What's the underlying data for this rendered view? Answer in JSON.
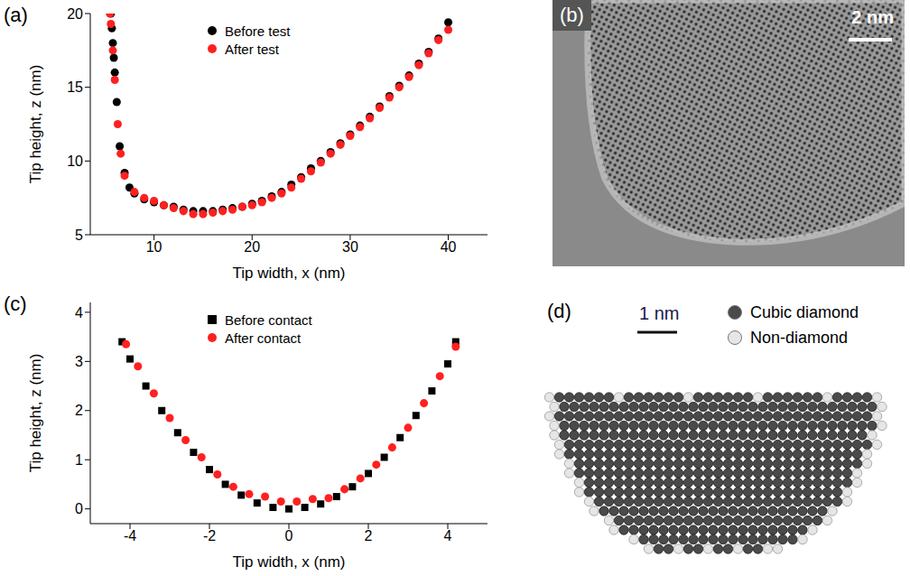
{
  "chart_data": [
    {
      "panel": "(a)",
      "type": "scatter",
      "x_label": "Tip width, x (nm)",
      "y_label": "Tip height, z (nm)",
      "xlim": [
        3.5,
        44
      ],
      "xticks": [
        10,
        20,
        30,
        40
      ],
      "ylim": [
        5,
        20
      ],
      "yticks": [
        5,
        10,
        15,
        20
      ],
      "legend": "top",
      "series": [
        {
          "name": "Before test",
          "color": "#000000",
          "marker": "circle",
          "x": [
            5.6,
            5.7,
            5.8,
            5.9,
            6.0,
            6.2,
            6.5,
            7,
            7.5,
            8,
            9,
            10,
            11,
            12,
            13,
            14,
            15,
            16,
            17,
            18,
            19,
            20,
            21,
            22,
            23,
            24,
            25,
            26,
            27,
            28,
            29,
            30,
            31,
            32,
            33,
            34,
            35,
            36,
            37,
            38,
            39,
            40
          ],
          "values": [
            20,
            19,
            18,
            17,
            16,
            14,
            11,
            9.2,
            8.2,
            7.8,
            7.4,
            7.2,
            7.0,
            6.9,
            6.7,
            6.6,
            6.6,
            6.6,
            6.7,
            6.8,
            6.9,
            7.1,
            7.3,
            7.6,
            7.9,
            8.4,
            8.9,
            9.5,
            10,
            10.6,
            11.2,
            11.8,
            12.4,
            13,
            13.7,
            14.4,
            15.1,
            15.8,
            16.6,
            17.4,
            18.3,
            19.4
          ]
        },
        {
          "name": "After test",
          "color": "#ff2020",
          "marker": "circle",
          "x": [
            5.5,
            5.6,
            5.8,
            6.0,
            6.3,
            6.6,
            7,
            8,
            9,
            10,
            11,
            12,
            13,
            14,
            15,
            16,
            17,
            18,
            19,
            20,
            21,
            22,
            23,
            24,
            25,
            26,
            27,
            28,
            29,
            30,
            31,
            32,
            33,
            34,
            35,
            36,
            37,
            38,
            39,
            40
          ],
          "values": [
            20,
            19.3,
            17.5,
            15.5,
            12.5,
            10.5,
            9.0,
            7.9,
            7.5,
            7.3,
            7.0,
            6.8,
            6.6,
            6.4,
            6.4,
            6.5,
            6.6,
            6.7,
            6.9,
            7.0,
            7.2,
            7.5,
            7.8,
            8.2,
            8.8,
            9.3,
            9.9,
            10.5,
            11.1,
            11.7,
            12.3,
            12.9,
            13.6,
            14.3,
            15.0,
            15.7,
            16.5,
            17.3,
            18.2,
            18.9
          ]
        }
      ]
    },
    {
      "panel": "(b)",
      "type": "image",
      "scale_bar": "2 nm"
    },
    {
      "panel": "(c)",
      "type": "scatter",
      "x_label": "Tip width, x (nm)",
      "y_label": "Tip height, z (nm)",
      "xlim": [
        -5,
        5
      ],
      "xticks": [
        -4,
        -2,
        0,
        2,
        4
      ],
      "ylim": [
        -0.3,
        4.2
      ],
      "yticks": [
        0,
        1,
        2,
        3,
        4
      ],
      "legend": "top",
      "series": [
        {
          "name": "Before contact",
          "color": "#000000",
          "marker": "square",
          "x": [
            -4.2,
            -4,
            -3.6,
            -3.2,
            -2.8,
            -2.4,
            -2,
            -1.6,
            -1.2,
            -0.8,
            -0.4,
            0,
            0.4,
            0.8,
            1.2,
            1.6,
            2,
            2.4,
            2.8,
            3.2,
            3.6,
            4,
            4.2
          ],
          "values": [
            3.4,
            3.05,
            2.5,
            2.0,
            1.55,
            1.15,
            0.8,
            0.5,
            0.28,
            0.12,
            0.03,
            0,
            0.03,
            0.1,
            0.25,
            0.45,
            0.72,
            1.05,
            1.45,
            1.9,
            2.4,
            2.95,
            3.4
          ]
        },
        {
          "name": "After contact",
          "color": "#ff2020",
          "marker": "circle",
          "x": [
            -4.1,
            -3.8,
            -3.4,
            -3.0,
            -2.6,
            -2.2,
            -1.8,
            -1.4,
            -1.0,
            -0.6,
            -0.2,
            0.2,
            0.6,
            1.0,
            1.4,
            1.8,
            2.2,
            2.6,
            3.0,
            3.4,
            3.8,
            4.2
          ],
          "values": [
            3.35,
            2.9,
            2.35,
            1.85,
            1.4,
            1.05,
            0.7,
            0.45,
            0.3,
            0.25,
            0.15,
            0.15,
            0.2,
            0.22,
            0.4,
            0.62,
            0.9,
            1.25,
            1.65,
            2.15,
            2.7,
            3.3
          ]
        }
      ]
    },
    {
      "panel": "(d)",
      "type": "image",
      "scale_bar": "1 nm",
      "legend_entries": [
        {
          "name": "Cubic diamond",
          "color": "#4a4a4a"
        },
        {
          "name": "Non-diamond",
          "color": "#e6e6e6"
        }
      ]
    }
  ]
}
